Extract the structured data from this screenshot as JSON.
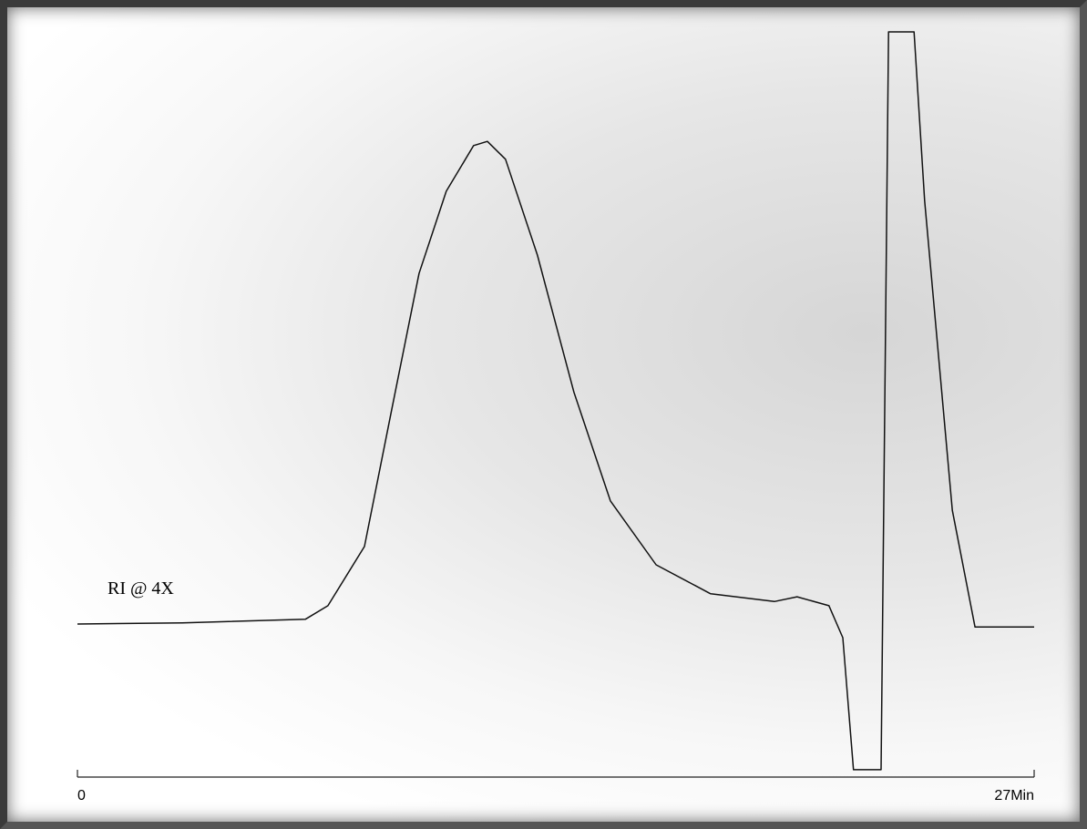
{
  "chart_data": {
    "type": "line",
    "annotation": "RI @ 4X",
    "x": [
      0,
      2.96,
      6.43,
      7.07,
      8.1,
      8.87,
      9.64,
      10.41,
      11.18,
      11.57,
      12.08,
      12.98,
      14.01,
      15.04,
      16.33,
      17.87,
      19.67,
      20.31,
      21.21,
      21.6,
      21.9,
      22.68,
      22.89,
      23.61,
      23.91,
      24.69,
      25.33,
      27
    ],
    "series": [
      {
        "color": "#111111",
        "values": [
          0,
          0.02,
          0.08,
          0.31,
          1.31,
          3.62,
          5.92,
          7.31,
          8.08,
          8.15,
          7.85,
          6.23,
          3.92,
          2.08,
          1.0,
          0.51,
          0.38,
          0.46,
          0.31,
          -0.23,
          -2.46,
          -2.46,
          10,
          10,
          7.15,
          1.92,
          -0.05,
          -0.05
        ]
      }
    ],
    "xlim": [
      0,
      27
    ],
    "xticks": [
      0,
      {
        "value": 27,
        "label": "27Min"
      }
    ],
    "ylim": [
      -2.6,
      10
    ]
  }
}
